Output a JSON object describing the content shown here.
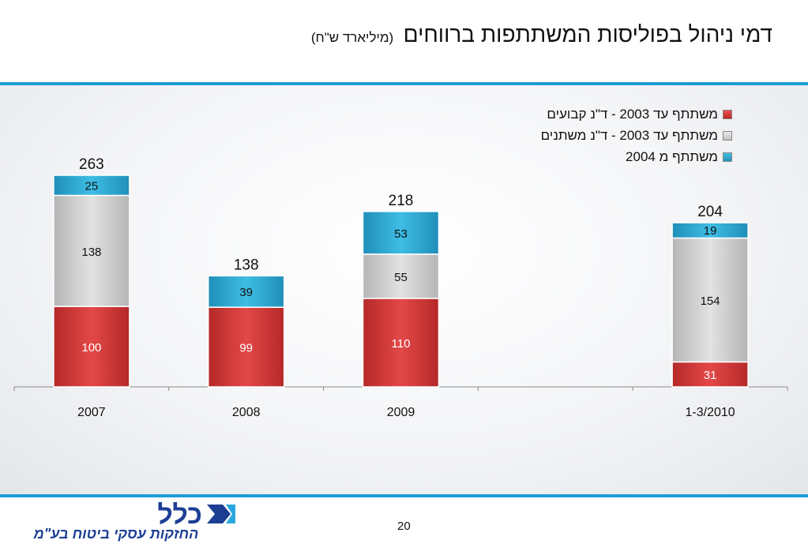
{
  "header": {
    "title": "דמי ניהול בפוליסות המשתתפות ברווחים",
    "subtitle": "(מיליארד ש\"ח)"
  },
  "chart_data": {
    "type": "bar",
    "stacked": true,
    "categories": [
      "2007",
      "2008",
      "2009",
      "",
      "1-3/2010"
    ],
    "series": [
      {
        "name": "משתתף עד 2003 - ד\"נ קבועים",
        "color": "#d23a3a",
        "values": [
          100,
          99,
          110,
          null,
          31
        ]
      },
      {
        "name": "משתתף עד 2003 - ד\"נ משתנים",
        "color": "#c8c8c8",
        "values": [
          138,
          null,
          55,
          null,
          154
        ]
      },
      {
        "name": "משתתף מ 2004",
        "color": "#2aa8d0",
        "values": [
          25,
          39,
          53,
          null,
          19
        ]
      }
    ],
    "totals": [
      263,
      138,
      218,
      null,
      204
    ],
    "ylim": [
      0,
      263
    ],
    "legend_position": "top-right",
    "grid": false
  },
  "footer": {
    "page_number": "20",
    "logo_text": "כלל",
    "logo_tagline": "החזקות עסקי ביטוח בע\"מ"
  }
}
